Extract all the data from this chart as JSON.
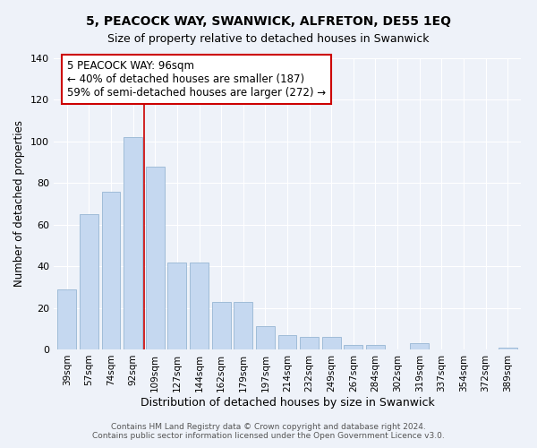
{
  "title": "5, PEACOCK WAY, SWANWICK, ALFRETON, DE55 1EQ",
  "subtitle": "Size of property relative to detached houses in Swanwick",
  "xlabel": "Distribution of detached houses by size in Swanwick",
  "ylabel": "Number of detached properties",
  "bar_labels": [
    "39sqm",
    "57sqm",
    "74sqm",
    "92sqm",
    "109sqm",
    "127sqm",
    "144sqm",
    "162sqm",
    "179sqm",
    "197sqm",
    "214sqm",
    "232sqm",
    "249sqm",
    "267sqm",
    "284sqm",
    "302sqm",
    "319sqm",
    "337sqm",
    "354sqm",
    "372sqm",
    "389sqm"
  ],
  "bar_values": [
    29,
    65,
    76,
    102,
    88,
    42,
    42,
    23,
    23,
    11,
    7,
    6,
    6,
    2,
    2,
    0,
    3,
    0,
    0,
    0,
    1
  ],
  "bar_color": "#c5d8f0",
  "bar_edgecolor": "#a0bcd8",
  "vline_x_index": 4,
  "vline_color": "#cc0000",
  "annotation_text_line1": "5 PEACOCK WAY: 96sqm",
  "annotation_text_line2": "← 40% of detached houses are smaller (187)",
  "annotation_text_line3": "59% of semi-detached houses are larger (272) →",
  "annotation_box_edgecolor": "#cc0000",
  "ylim": [
    0,
    140
  ],
  "yticks": [
    0,
    20,
    40,
    60,
    80,
    100,
    120,
    140
  ],
  "background_color": "#eef2f9",
  "grid_color": "#ffffff",
  "footer_line1": "Contains HM Land Registry data © Crown copyright and database right 2024.",
  "footer_line2": "Contains public sector information licensed under the Open Government Licence v3.0.",
  "title_fontsize": 10,
  "subtitle_fontsize": 9
}
